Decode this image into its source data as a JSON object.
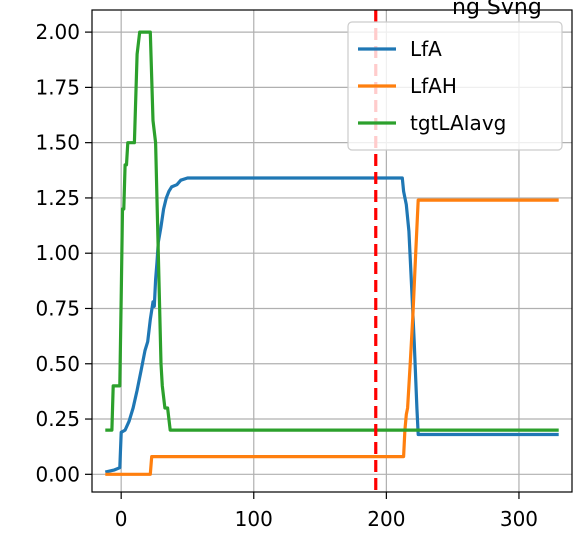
{
  "chart_data": {
    "type": "line",
    "title": "",
    "xlabel": "",
    "ylabel": "",
    "xlim": [
      -22,
      340
    ],
    "ylim": [
      -0.08,
      2.1
    ],
    "xticks": [
      0,
      100,
      200,
      300
    ],
    "xtick_labels": [
      "0",
      "100",
      "200",
      "300"
    ],
    "yticks": [
      0,
      0.25,
      0.5,
      0.75,
      1.0,
      1.25,
      1.5,
      1.75,
      2.0
    ],
    "ytick_labels": [
      "0.00",
      "0.25",
      "0.50",
      "0.75",
      "1.00",
      "1.25",
      "1.50",
      "1.75",
      "2.00"
    ],
    "grid": true,
    "legend_position": "top-right",
    "vline": {
      "x": 192,
      "color": "#ff0000",
      "style": "dashed"
    },
    "series": [
      {
        "name": "LfA",
        "color": "#1f77b4",
        "points": [
          [
            -12,
            0.01
          ],
          [
            -5,
            0.02
          ],
          [
            -1,
            0.03
          ],
          [
            0,
            0.19
          ],
          [
            3,
            0.2
          ],
          [
            6,
            0.24
          ],
          [
            9,
            0.3
          ],
          [
            12,
            0.38
          ],
          [
            15,
            0.47
          ],
          [
            18,
            0.56
          ],
          [
            20,
            0.6
          ],
          [
            22,
            0.7
          ],
          [
            24,
            0.78
          ],
          [
            25,
            0.76
          ],
          [
            26,
            0.88
          ],
          [
            27,
            0.96
          ],
          [
            28,
            1.05
          ],
          [
            30,
            1.12
          ],
          [
            32,
            1.2
          ],
          [
            34,
            1.25
          ],
          [
            36,
            1.28
          ],
          [
            38,
            1.3
          ],
          [
            42,
            1.31
          ],
          [
            45,
            1.33
          ],
          [
            50,
            1.34
          ],
          [
            212,
            1.34
          ],
          [
            213,
            1.28
          ],
          [
            215,
            1.22
          ],
          [
            217,
            1.1
          ],
          [
            219,
            0.85
          ],
          [
            221,
            0.6
          ],
          [
            223,
            0.3
          ],
          [
            224,
            0.18
          ],
          [
            330,
            0.18
          ]
        ]
      },
      {
        "name": "LfAH",
        "color": "#ff7f0e",
        "points": [
          [
            -12,
            0.0
          ],
          [
            22,
            0.0
          ],
          [
            23,
            0.08
          ],
          [
            213,
            0.08
          ],
          [
            214,
            0.2
          ],
          [
            215,
            0.27
          ],
          [
            216,
            0.3
          ],
          [
            218,
            0.5
          ],
          [
            220,
            0.72
          ],
          [
            222,
            0.98
          ],
          [
            224,
            1.24
          ],
          [
            330,
            1.24
          ]
        ]
      },
      {
        "name": "tgtLAIavg",
        "color": "#2ca02c",
        "points": [
          [
            -12,
            0.2
          ],
          [
            -7,
            0.2
          ],
          [
            -6,
            0.4
          ],
          [
            -1,
            0.4
          ],
          [
            0,
            0.8
          ],
          [
            1,
            1.2
          ],
          [
            2,
            1.2
          ],
          [
            3,
            1.4
          ],
          [
            4,
            1.4
          ],
          [
            5,
            1.5
          ],
          [
            10,
            1.5
          ],
          [
            12,
            1.9
          ],
          [
            14,
            2.0
          ],
          [
            22,
            2.0
          ],
          [
            24,
            1.6
          ],
          [
            26,
            1.5
          ],
          [
            28,
            1.0
          ],
          [
            30,
            0.5
          ],
          [
            31,
            0.4
          ],
          [
            33,
            0.3
          ],
          [
            35,
            0.3
          ],
          [
            37,
            0.2
          ],
          [
            330,
            0.2
          ]
        ]
      }
    ]
  },
  "header": {
    "title_fragment": "ng  Svng"
  }
}
